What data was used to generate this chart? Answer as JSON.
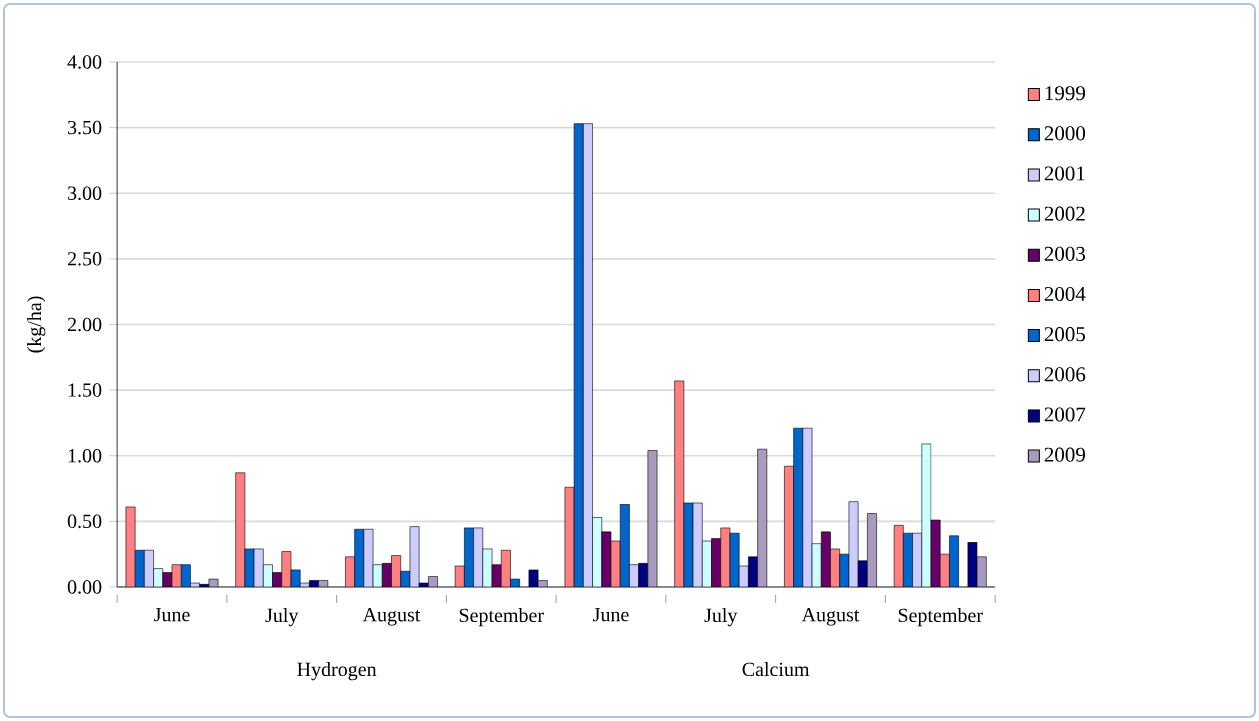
{
  "chart_data": {
    "type": "bar",
    "ylabel": "(kg/ha)",
    "categories": [
      "June",
      "July",
      "August",
      "September",
      "June",
      "July",
      "August",
      "September"
    ],
    "annotations": [
      "Hydrogen",
      "Calcium"
    ],
    "series": [
      {
        "name": "1999",
        "color": "#ff8080",
        "values": [
          0.61,
          0.87,
          0.23,
          0.16,
          0.76,
          1.57,
          0.92,
          0.47
        ]
      },
      {
        "name": "2000",
        "color": "#0066cc",
        "values": [
          0.28,
          0.29,
          0.44,
          0.45,
          3.53,
          0.64,
          1.21,
          0.41
        ]
      },
      {
        "name": "2001",
        "color": "#ccccff",
        "values": [
          0.28,
          0.29,
          0.44,
          0.45,
          3.53,
          0.64,
          1.21,
          0.41
        ]
      },
      {
        "name": "2002",
        "color": "#ccffff",
        "values": [
          0.14,
          0.17,
          0.17,
          0.29,
          0.53,
          0.35,
          0.33,
          1.09
        ]
      },
      {
        "name": "2003",
        "color": "#660066",
        "values": [
          0.11,
          0.11,
          0.18,
          0.17,
          0.42,
          0.37,
          0.42,
          0.51
        ]
      },
      {
        "name": "2004",
        "color": "#ff8080",
        "values": [
          0.17,
          0.27,
          0.24,
          0.28,
          0.35,
          0.45,
          0.29,
          0.25
        ]
      },
      {
        "name": "2005",
        "color": "#0066cc",
        "values": [
          0.17,
          0.13,
          0.12,
          0.06,
          0.63,
          0.41,
          0.25,
          0.39
        ]
      },
      {
        "name": "2006",
        "color": "#ccccff",
        "values": [
          0.03,
          0.03,
          0.46,
          null,
          0.17,
          0.16,
          0.65,
          null
        ]
      },
      {
        "name": "2007",
        "color": "#000080",
        "values": [
          0.02,
          0.05,
          0.03,
          0.13,
          0.18,
          0.23,
          0.2,
          0.34
        ]
      },
      {
        "name": "2009",
        "color": "#a99bbd",
        "values": [
          0.06,
          0.05,
          0.08,
          0.05,
          1.04,
          1.05,
          0.56,
          0.23
        ]
      }
    ],
    "ylim": [
      0,
      4
    ],
    "yticks": [
      {
        "value": 0,
        "label": "0.00"
      },
      {
        "value": 0.5,
        "label": "0.50"
      },
      {
        "value": 1,
        "label": "1.00"
      },
      {
        "value": 1.5,
        "label": "1.50"
      },
      {
        "value": 2,
        "label": "2.00"
      },
      {
        "value": 2.5,
        "label": "2.50"
      },
      {
        "value": 3,
        "label": "3.00"
      },
      {
        "value": 3.5,
        "label": "3.50"
      },
      {
        "value": 4,
        "label": "4.00"
      }
    ],
    "grid": "y",
    "legend": "right"
  }
}
